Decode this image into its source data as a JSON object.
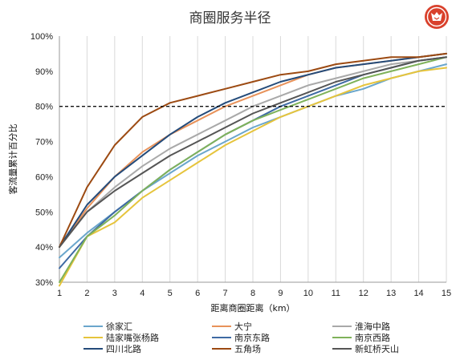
{
  "chart_data": {
    "type": "line",
    "title": "商圈服务半径",
    "xlabel": "距离商圈距离（km）",
    "ylabel": "客流量累计百分比",
    "x": [
      1,
      2,
      3,
      4,
      5,
      6,
      7,
      8,
      9,
      10,
      11,
      12,
      13,
      14,
      15
    ],
    "xlim": [
      1,
      15
    ],
    "ylim": [
      30,
      100
    ],
    "yticks": [
      "30%",
      "40%",
      "50%",
      "60%",
      "70%",
      "80%",
      "90%",
      "100%"
    ],
    "xticks": [
      "1",
      "2",
      "3",
      "4",
      "5",
      "6",
      "7",
      "8",
      "9",
      "10",
      "11",
      "12",
      "13",
      "14",
      "15"
    ],
    "grid": "vertical",
    "legend_position": "bottom",
    "reference_line": {
      "y": 80,
      "style": "dashed"
    },
    "series": [
      {
        "name": "徐家汇",
        "color": "#6aa6cc",
        "values": [
          37,
          44,
          50,
          56,
          61,
          66,
          70,
          74,
          77,
          80,
          83,
          85,
          88,
          90,
          92
        ]
      },
      {
        "name": "大宁",
        "color": "#e8925a",
        "values": [
          40,
          51,
          60,
          67,
          72,
          76,
          80,
          83,
          86,
          89,
          91,
          92,
          93,
          94,
          95
        ]
      },
      {
        "name": "淮海中路",
        "color": "#a9a9a9",
        "values": [
          40,
          50,
          57,
          63,
          68,
          72,
          76,
          80,
          83,
          86,
          88,
          90,
          92,
          93,
          94
        ]
      },
      {
        "name": "陆家嘴张杨路",
        "color": "#e6c43c",
        "values": [
          29,
          43,
          47,
          54,
          59,
          64,
          69,
          73,
          77,
          80,
          83,
          86,
          88,
          90,
          91
        ]
      },
      {
        "name": "南京东路",
        "color": "#3e6aa3",
        "values": [
          34,
          43,
          50,
          56,
          62,
          67,
          72,
          76,
          80,
          83,
          86,
          89,
          91,
          93,
          94
        ]
      },
      {
        "name": "南京西路",
        "color": "#7fb25a",
        "values": [
          30,
          43,
          49,
          56,
          62,
          67,
          72,
          76,
          79,
          82,
          85,
          88,
          90,
          92,
          94
        ]
      },
      {
        "name": "四川北路",
        "color": "#244b7a",
        "values": [
          40,
          52,
          60,
          66,
          72,
          77,
          81,
          84,
          87,
          89,
          91,
          92,
          93,
          94,
          95
        ]
      },
      {
        "name": "五角场",
        "color": "#9c4a12",
        "values": [
          40,
          57,
          69,
          77,
          81,
          83,
          85,
          87,
          89,
          90,
          92,
          93,
          94,
          94,
          95
        ]
      },
      {
        "name": "新虹桥天山",
        "color": "#555555",
        "values": [
          40,
          50,
          56,
          61,
          66,
          70,
          74,
          78,
          81,
          84,
          87,
          89,
          91,
          93,
          94
        ]
      }
    ]
  }
}
